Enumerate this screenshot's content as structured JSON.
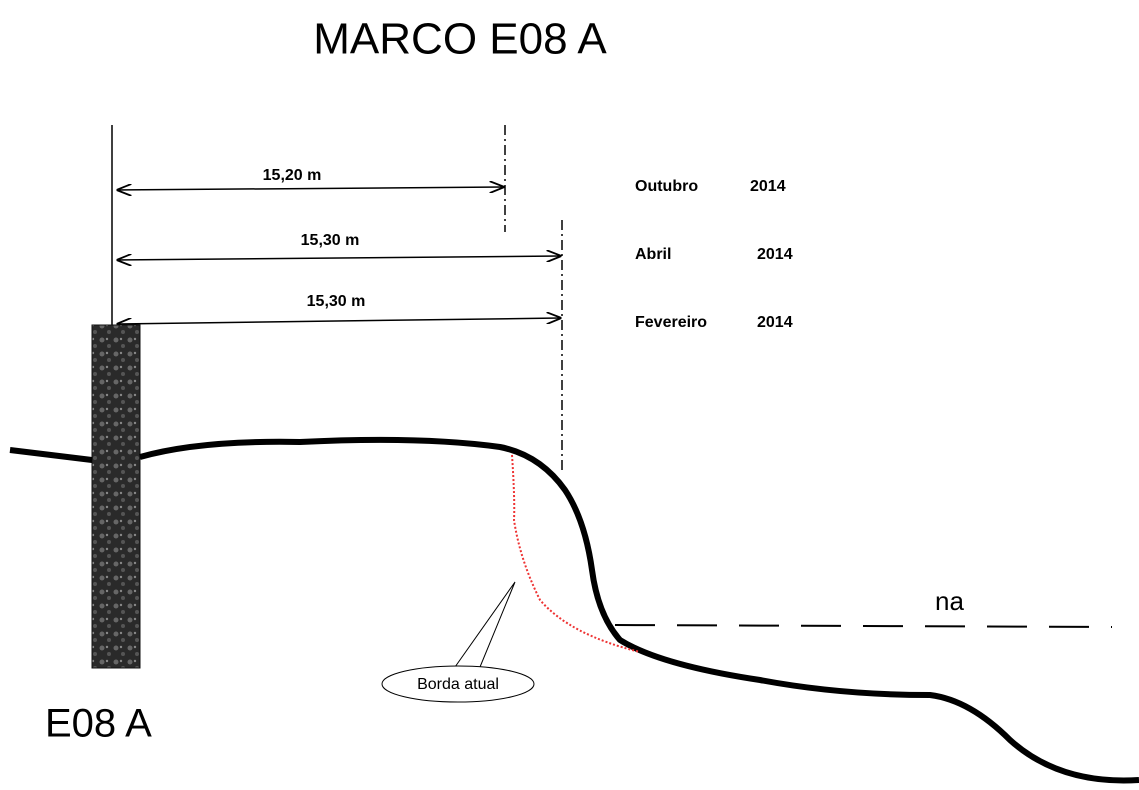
{
  "title": "MARCO E08 A",
  "measurements": [
    {
      "label": "15,20 m"
    },
    {
      "label": "15,30 m"
    },
    {
      "label": "15,30 m"
    }
  ],
  "legend": [
    {
      "month": "Outubro",
      "year": "2014"
    },
    {
      "month": "Abril",
      "year": "2014"
    },
    {
      "month": "Fevereiro",
      "year": "2014"
    }
  ],
  "water_label": "na",
  "callout": "Borda atual",
  "marker_label": "E08 A"
}
